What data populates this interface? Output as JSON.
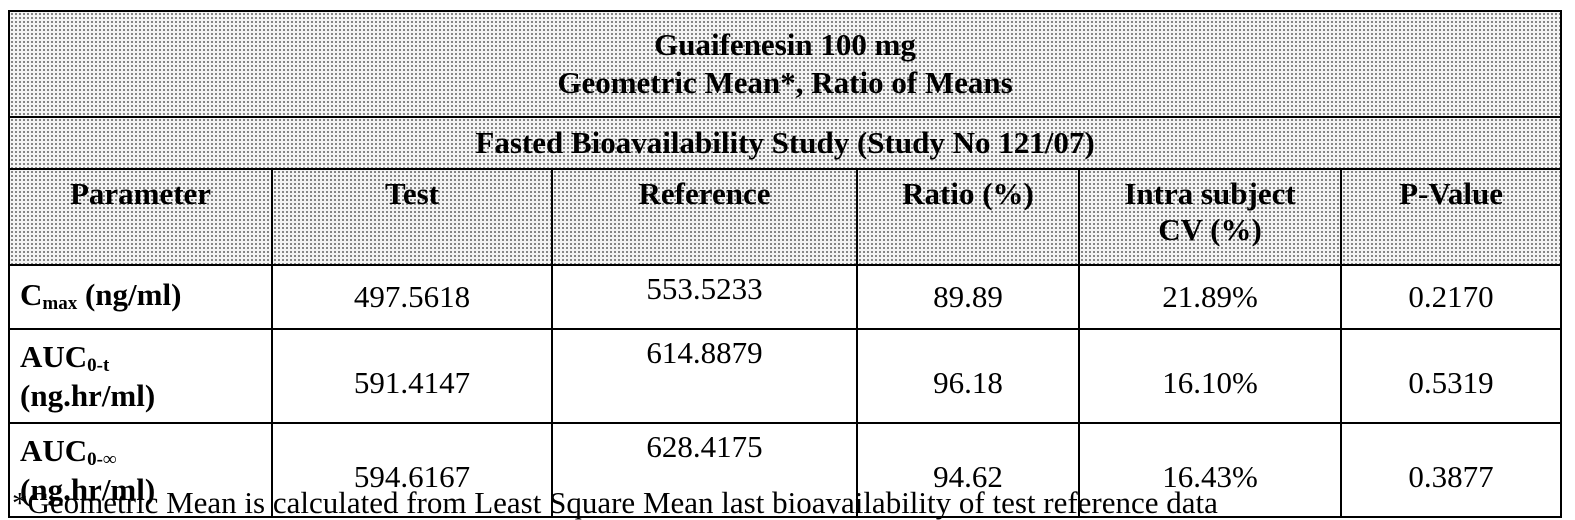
{
  "title": {
    "line1": "Guaifenesin 100 mg",
    "line2": "Geometric Mean*, Ratio of Means"
  },
  "study": "Fasted Bioavailability Study (Study No 121/07)",
  "columns": {
    "parameter": "Parameter",
    "test": "Test",
    "reference": "Reference",
    "ratio": "Ratio (%)",
    "cv_line1": "Intra subject",
    "cv_line2": "CV (%)",
    "pvalue": "P-Value"
  },
  "rows": [
    {
      "param_main": "C",
      "param_sub": "max",
      "param_unit": "(ng/ml)",
      "test": "497.5618",
      "reference": "553.5233",
      "ratio": "89.89",
      "cv": "21.89%",
      "pvalue": "0.2170"
    },
    {
      "param_main": "AUC",
      "param_sub": "0-t",
      "param_unit": "(ng.hr/ml)",
      "test": "591.4147",
      "reference": "614.8879",
      "ratio": "96.18",
      "cv": "16.10%",
      "pvalue": "0.5319"
    },
    {
      "param_main": "AUC",
      "param_sub": "0-∞",
      "param_unit": "(ng.hr/ml)",
      "test": "594.6167",
      "reference": "628.4175",
      "ratio": "94.62",
      "cv": "16.43%",
      "pvalue": "0.3877"
    }
  ],
  "footnote": "*Geometric Mean is calculated from Least Square Mean last bioavailability of test reference data"
}
